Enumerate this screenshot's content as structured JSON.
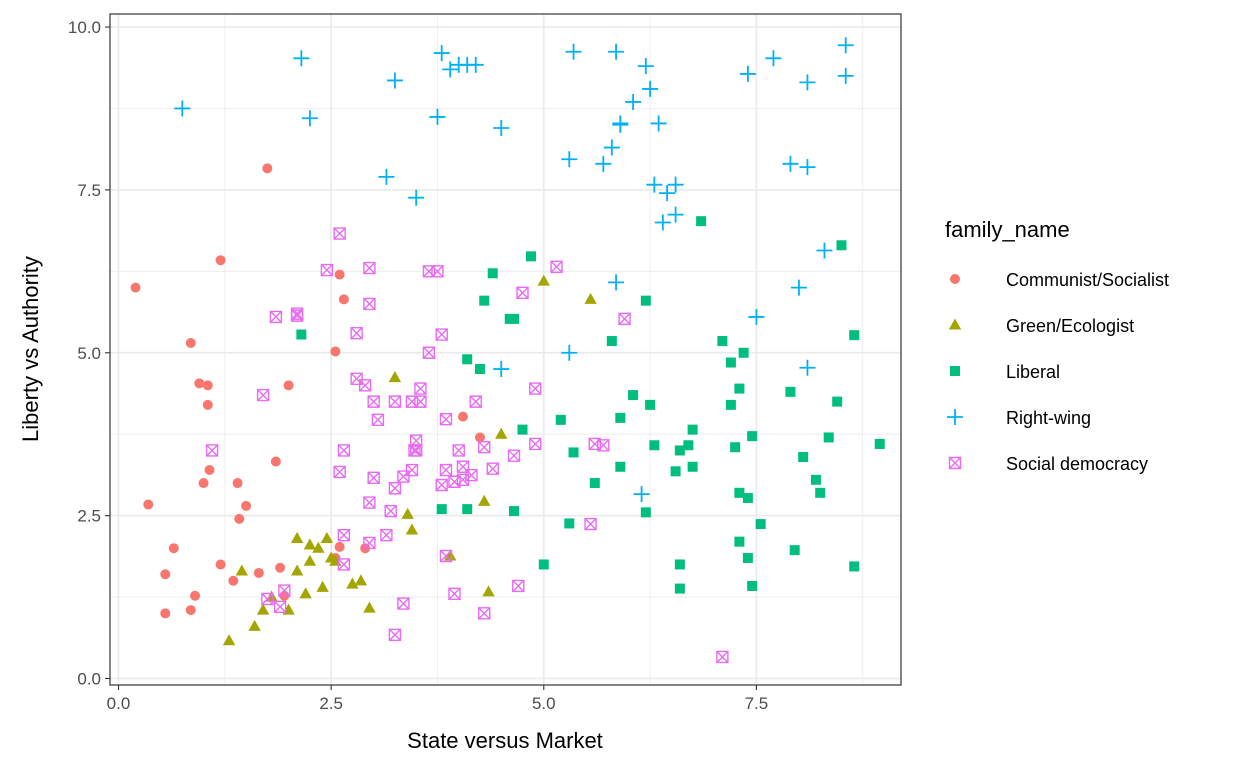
{
  "chart_data": {
    "type": "scatter",
    "xlabel": "State versus Market",
    "ylabel": "Liberty vs Authority",
    "xlim": [
      -0.1,
      9.2
    ],
    "ylim": [
      -0.1,
      10.2
    ],
    "x_ticks": [
      0.0,
      2.5,
      5.0,
      7.5
    ],
    "x_tick_labels": [
      "0.0",
      "2.5",
      "5.0",
      "7.5"
    ],
    "y_ticks": [
      0.0,
      2.5,
      5.0,
      7.5,
      10.0
    ],
    "y_tick_labels": [
      "0.0",
      "2.5",
      "5.0",
      "7.5",
      "10.0"
    ],
    "grid": true,
    "legend_title": "family_name",
    "legend_position": "right",
    "series": [
      {
        "name": "Communist/Socialist",
        "color": "#F8766D",
        "marker": "circle",
        "points": [
          [
            0.2,
            6.0
          ],
          [
            0.35,
            2.67
          ],
          [
            0.55,
            1.6
          ],
          [
            0.55,
            1.0
          ],
          [
            0.65,
            2.0
          ],
          [
            0.85,
            5.15
          ],
          [
            0.85,
            1.05
          ],
          [
            0.9,
            1.27
          ],
          [
            0.95,
            4.53
          ],
          [
            1.0,
            3.0
          ],
          [
            1.05,
            4.2
          ],
          [
            1.05,
            4.5
          ],
          [
            1.07,
            3.2
          ],
          [
            1.2,
            6.42
          ],
          [
            1.2,
            1.75
          ],
          [
            1.35,
            1.5
          ],
          [
            1.4,
            3.0
          ],
          [
            1.42,
            2.45
          ],
          [
            1.5,
            2.65
          ],
          [
            1.65,
            1.62
          ],
          [
            1.75,
            7.83
          ],
          [
            1.85,
            3.33
          ],
          [
            1.9,
            1.7
          ],
          [
            1.95,
            1.27
          ],
          [
            2.0,
            4.5
          ],
          [
            2.55,
            5.02
          ],
          [
            2.6,
            6.2
          ],
          [
            2.65,
            5.82
          ],
          [
            2.6,
            2.02
          ],
          [
            2.55,
            1.85
          ],
          [
            2.9,
            2.0
          ],
          [
            4.05,
            4.02
          ],
          [
            4.25,
            3.7
          ]
        ]
      },
      {
        "name": "Green/Ecologist",
        "color": "#A3A500",
        "marker": "triangle",
        "points": [
          [
            1.3,
            0.58
          ],
          [
            1.45,
            1.65
          ],
          [
            1.6,
            0.8
          ],
          [
            1.7,
            1.05
          ],
          [
            1.8,
            1.25
          ],
          [
            2.0,
            1.05
          ],
          [
            2.1,
            2.15
          ],
          [
            2.1,
            1.65
          ],
          [
            2.2,
            1.3
          ],
          [
            2.25,
            1.8
          ],
          [
            2.25,
            2.05
          ],
          [
            2.35,
            2.0
          ],
          [
            2.4,
            1.4
          ],
          [
            2.45,
            2.15
          ],
          [
            2.5,
            1.85
          ],
          [
            2.55,
            1.8
          ],
          [
            2.75,
            1.45
          ],
          [
            2.85,
            1.5
          ],
          [
            2.95,
            1.08
          ],
          [
            3.25,
            4.62
          ],
          [
            3.4,
            2.52
          ],
          [
            3.45,
            2.28
          ],
          [
            3.9,
            1.88
          ],
          [
            4.3,
            2.72
          ],
          [
            4.35,
            1.33
          ],
          [
            4.5,
            3.75
          ],
          [
            5.0,
            6.1
          ],
          [
            5.55,
            5.82
          ]
        ]
      },
      {
        "name": "Liberal",
        "color": "#00BF7D",
        "marker": "square",
        "points": [
          [
            2.15,
            5.28
          ],
          [
            3.8,
            2.6
          ],
          [
            4.1,
            4.9
          ],
          [
            4.1,
            2.6
          ],
          [
            4.25,
            4.75
          ],
          [
            4.3,
            5.8
          ],
          [
            4.4,
            6.22
          ],
          [
            4.6,
            5.52
          ],
          [
            4.65,
            5.52
          ],
          [
            4.65,
            2.57
          ],
          [
            4.75,
            3.82
          ],
          [
            4.85,
            6.48
          ],
          [
            5.0,
            1.75
          ],
          [
            5.2,
            3.97
          ],
          [
            5.3,
            2.38
          ],
          [
            5.35,
            3.47
          ],
          [
            5.6,
            3.0
          ],
          [
            5.8,
            5.18
          ],
          [
            5.9,
            4.0
          ],
          [
            5.9,
            3.25
          ],
          [
            6.05,
            4.35
          ],
          [
            6.2,
            5.8
          ],
          [
            6.25,
            4.2
          ],
          [
            6.2,
            2.55
          ],
          [
            6.3,
            3.58
          ],
          [
            6.55,
            3.18
          ],
          [
            6.6,
            3.5
          ],
          [
            6.6,
            1.75
          ],
          [
            6.6,
            1.38
          ],
          [
            6.7,
            3.58
          ],
          [
            6.75,
            3.82
          ],
          [
            6.75,
            3.25
          ],
          [
            6.85,
            7.02
          ],
          [
            7.1,
            5.18
          ],
          [
            7.2,
            4.85
          ],
          [
            7.2,
            4.2
          ],
          [
            7.25,
            3.55
          ],
          [
            7.3,
            4.45
          ],
          [
            7.3,
            2.85
          ],
          [
            7.3,
            2.1
          ],
          [
            7.35,
            5.0
          ],
          [
            7.4,
            2.77
          ],
          [
            7.4,
            1.85
          ],
          [
            7.45,
            3.72
          ],
          [
            7.45,
            1.42
          ],
          [
            7.55,
            2.37
          ],
          [
            7.9,
            4.4
          ],
          [
            7.95,
            1.97
          ],
          [
            8.05,
            3.4
          ],
          [
            8.2,
            3.05
          ],
          [
            8.25,
            2.85
          ],
          [
            8.35,
            3.7
          ],
          [
            8.45,
            4.25
          ],
          [
            8.5,
            6.65
          ],
          [
            8.65,
            5.27
          ],
          [
            8.65,
            1.72
          ],
          [
            8.95,
            3.6
          ]
        ]
      },
      {
        "name": "Right-wing",
        "color": "#00B0F6",
        "marker": "plus",
        "points": [
          [
            0.75,
            8.75
          ],
          [
            2.15,
            9.52
          ],
          [
            2.25,
            8.6
          ],
          [
            3.15,
            7.7
          ],
          [
            3.25,
            9.18
          ],
          [
            3.5,
            7.38
          ],
          [
            3.75,
            8.62
          ],
          [
            3.8,
            9.6
          ],
          [
            3.9,
            9.35
          ],
          [
            4.0,
            9.42
          ],
          [
            4.1,
            9.42
          ],
          [
            4.2,
            9.42
          ],
          [
            4.5,
            4.75
          ],
          [
            4.5,
            8.45
          ],
          [
            5.3,
            5.0
          ],
          [
            5.3,
            7.97
          ],
          [
            5.35,
            9.62
          ],
          [
            5.7,
            7.9
          ],
          [
            5.8,
            8.15
          ],
          [
            5.85,
            9.62
          ],
          [
            5.85,
            6.08
          ],
          [
            5.9,
            8.52
          ],
          [
            5.9,
            8.5
          ],
          [
            6.05,
            8.85
          ],
          [
            6.15,
            2.83
          ],
          [
            6.2,
            9.4
          ],
          [
            6.25,
            9.05
          ],
          [
            6.3,
            7.58
          ],
          [
            6.35,
            8.52
          ],
          [
            6.4,
            7.0
          ],
          [
            6.45,
            7.45
          ],
          [
            6.55,
            7.58
          ],
          [
            6.55,
            7.12
          ],
          [
            7.4,
            9.28
          ],
          [
            7.5,
            5.55
          ],
          [
            7.7,
            9.52
          ],
          [
            7.9,
            7.9
          ],
          [
            8.0,
            6.0
          ],
          [
            8.1,
            9.15
          ],
          [
            8.1,
            4.77
          ],
          [
            8.1,
            7.85
          ],
          [
            8.3,
            6.57
          ],
          [
            8.55,
            9.72
          ],
          [
            8.55,
            9.25
          ]
        ]
      },
      {
        "name": "Social democracy",
        "color": "#E76BF3",
        "marker": "square-x",
        "points": [
          [
            1.1,
            3.5
          ],
          [
            1.7,
            4.35
          ],
          [
            1.75,
            1.22
          ],
          [
            1.85,
            5.55
          ],
          [
            1.9,
            1.1
          ],
          [
            1.95,
            1.35
          ],
          [
            2.1,
            5.57
          ],
          [
            2.1,
            5.6
          ],
          [
            2.45,
            6.27
          ],
          [
            2.6,
            6.83
          ],
          [
            2.6,
            3.17
          ],
          [
            2.65,
            3.5
          ],
          [
            2.65,
            2.2
          ],
          [
            2.65,
            1.75
          ],
          [
            2.8,
            5.3
          ],
          [
            2.8,
            4.6
          ],
          [
            2.9,
            4.5
          ],
          [
            2.95,
            6.3
          ],
          [
            2.95,
            5.75
          ],
          [
            2.95,
            2.7
          ],
          [
            2.95,
            2.08
          ],
          [
            3.0,
            3.08
          ],
          [
            3.0,
            4.25
          ],
          [
            3.05,
            3.97
          ],
          [
            3.15,
            2.2
          ],
          [
            3.2,
            2.57
          ],
          [
            3.25,
            4.25
          ],
          [
            3.25,
            2.92
          ],
          [
            3.25,
            0.67
          ],
          [
            3.35,
            3.1
          ],
          [
            3.35,
            1.15
          ],
          [
            3.45,
            4.25
          ],
          [
            3.45,
            3.2
          ],
          [
            3.48,
            3.5
          ],
          [
            3.5,
            3.65
          ],
          [
            3.5,
            3.5
          ],
          [
            3.55,
            4.25
          ],
          [
            3.55,
            4.45
          ],
          [
            3.65,
            5.0
          ],
          [
            3.65,
            6.25
          ],
          [
            3.75,
            6.25
          ],
          [
            3.8,
            2.97
          ],
          [
            3.8,
            5.28
          ],
          [
            3.85,
            3.98
          ],
          [
            3.85,
            3.2
          ],
          [
            3.85,
            1.88
          ],
          [
            3.95,
            3.02
          ],
          [
            3.95,
            1.3
          ],
          [
            4.0,
            3.5
          ],
          [
            4.05,
            3.25
          ],
          [
            4.05,
            3.05
          ],
          [
            4.15,
            3.12
          ],
          [
            4.2,
            4.25
          ],
          [
            4.3,
            3.55
          ],
          [
            4.3,
            1.0
          ],
          [
            4.4,
            3.22
          ],
          [
            4.65,
            3.42
          ],
          [
            4.7,
            1.42
          ],
          [
            4.75,
            5.92
          ],
          [
            4.9,
            4.45
          ],
          [
            4.9,
            3.6
          ],
          [
            5.15,
            6.32
          ],
          [
            5.55,
            2.37
          ],
          [
            5.6,
            3.6
          ],
          [
            5.7,
            3.58
          ],
          [
            5.95,
            5.52
          ],
          [
            7.1,
            0.33
          ]
        ]
      }
    ]
  }
}
